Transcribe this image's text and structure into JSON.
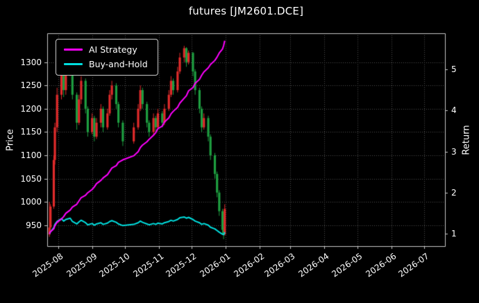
{
  "colors": {
    "background": "#000000",
    "text": "#ffffff",
    "grid": "#4f4f4f",
    "spine": "#c8c8c8",
    "candle_up": "#e12b2b",
    "candle_down": "#1e9e40",
    "ai_strategy": "#ff00ff",
    "buy_and_hold": "#00dede"
  },
  "chart_data": {
    "type": "candlestick+line",
    "title": "futures [JM2601.DCE]",
    "price_ylabel": "Price",
    "return_ylabel": "Return",
    "grid": true,
    "legend_position": "upper left",
    "x_lim": [
      "2025-07-22",
      "2026-07-20"
    ],
    "x_ticks": [
      "2025-08",
      "2025-09",
      "2025-10",
      "2025-11",
      "2025-12",
      "2026-01",
      "2026-02",
      "2026-03",
      "2026-04",
      "2026-05",
      "2026-06",
      "2026-07"
    ],
    "price_ylim": [
      905,
      1362
    ],
    "price_ticks": [
      950,
      1000,
      1050,
      1100,
      1150,
      1200,
      1250,
      1300
    ],
    "return_ylim": [
      0.7,
      5.88
    ],
    "return_ticks": [
      1,
      2,
      3,
      4,
      5
    ],
    "candles": {
      "dates": [
        "2025-07-24",
        "2025-07-25",
        "2025-07-28",
        "2025-07-29",
        "2025-07-31",
        "2025-08-04",
        "2025-08-06",
        "2025-08-08",
        "2025-08-12",
        "2025-08-14",
        "2025-08-18",
        "2025-08-20",
        "2025-08-22",
        "2025-08-26",
        "2025-08-28",
        "2025-09-01",
        "2025-09-03",
        "2025-09-05",
        "2025-09-09",
        "2025-09-11",
        "2025-09-15",
        "2025-09-17",
        "2025-09-19",
        "2025-09-23",
        "2025-09-25",
        "2025-09-29",
        "2025-10-09",
        "2025-10-13",
        "2025-10-15",
        "2025-10-17",
        "2025-10-21",
        "2025-10-23",
        "2025-10-27",
        "2025-10-29",
        "2025-10-31",
        "2025-11-04",
        "2025-11-06",
        "2025-11-10",
        "2025-11-12",
        "2025-11-14",
        "2025-11-18",
        "2025-11-20",
        "2025-11-24",
        "2025-11-26",
        "2025-11-28",
        "2025-12-02",
        "2025-12-04",
        "2025-12-08",
        "2025-12-10",
        "2025-12-12",
        "2025-12-16",
        "2025-12-18",
        "2025-12-22",
        "2025-12-24",
        "2025-12-26",
        "2025-12-29",
        "2025-12-30",
        "2025-12-31"
      ],
      "open": [
        930,
        945,
        990,
        1090,
        1160,
        1230,
        1290,
        1240,
        1280,
        1300,
        1230,
        1170,
        1220,
        1260,
        1200,
        1150,
        1180,
        1140,
        1170,
        1200,
        1160,
        1190,
        1230,
        1250,
        1210,
        1170,
        1130,
        1160,
        1200,
        1240,
        1210,
        1170,
        1150,
        1180,
        1160,
        1190,
        1170,
        1200,
        1230,
        1260,
        1240,
        1280,
        1310,
        1330,
        1300,
        1320,
        1280,
        1240,
        1200,
        1160,
        1180,
        1140,
        1100,
        1060,
        1020,
        980,
        940,
        930
      ],
      "high": [
        1000,
        995,
        1100,
        1170,
        1245,
        1310,
        1295,
        1290,
        1320,
        1305,
        1235,
        1230,
        1270,
        1265,
        1205,
        1190,
        1185,
        1180,
        1210,
        1205,
        1200,
        1240,
        1260,
        1255,
        1215,
        1175,
        1170,
        1210,
        1250,
        1245,
        1215,
        1175,
        1190,
        1185,
        1200,
        1195,
        1210,
        1240,
        1270,
        1265,
        1290,
        1320,
        1335,
        1332,
        1325,
        1322,
        1285,
        1245,
        1205,
        1190,
        1185,
        1145,
        1105,
        1065,
        1025,
        985,
        945,
        995
      ],
      "low": [
        925,
        940,
        985,
        1080,
        1150,
        1220,
        1225,
        1230,
        1270,
        1220,
        1155,
        1165,
        1210,
        1190,
        1140,
        1145,
        1130,
        1135,
        1160,
        1150,
        1155,
        1185,
        1220,
        1200,
        1160,
        1120,
        1125,
        1155,
        1195,
        1200,
        1160,
        1140,
        1145,
        1150,
        1155,
        1160,
        1165,
        1195,
        1225,
        1230,
        1235,
        1275,
        1300,
        1290,
        1295,
        1270,
        1230,
        1190,
        1150,
        1155,
        1130,
        1090,
        1050,
        1010,
        970,
        930,
        920,
        928
      ],
      "close": [
        945,
        990,
        1090,
        1160,
        1230,
        1290,
        1240,
        1280,
        1300,
        1230,
        1170,
        1220,
        1260,
        1200,
        1150,
        1180,
        1140,
        1170,
        1200,
        1160,
        1190,
        1230,
        1250,
        1210,
        1170,
        1130,
        1160,
        1200,
        1240,
        1210,
        1170,
        1150,
        1180,
        1160,
        1190,
        1170,
        1200,
        1230,
        1260,
        1240,
        1280,
        1310,
        1330,
        1300,
        1320,
        1280,
        1240,
        1200,
        1160,
        1180,
        1140,
        1100,
        1060,
        1020,
        980,
        940,
        930,
        985
      ]
    },
    "series": [
      {
        "name": "AI Strategy",
        "color": "#ff00ff",
        "axis": "return",
        "values": [
          1.0,
          1.05,
          1.12,
          1.2,
          1.28,
          1.36,
          1.42,
          1.5,
          1.58,
          1.65,
          1.72,
          1.8,
          1.88,
          1.94,
          2.0,
          2.08,
          2.14,
          2.22,
          2.3,
          2.36,
          2.44,
          2.52,
          2.6,
          2.66,
          2.74,
          2.8,
          2.9,
          3.0,
          3.1,
          3.16,
          3.24,
          3.3,
          3.4,
          3.46,
          3.56,
          3.62,
          3.72,
          3.82,
          3.92,
          3.98,
          4.08,
          4.18,
          4.3,
          4.36,
          4.48,
          4.56,
          4.66,
          4.76,
          4.86,
          4.94,
          5.04,
          5.12,
          5.22,
          5.3,
          5.4,
          5.5,
          5.58,
          5.7
        ]
      },
      {
        "name": "Buy-and-Hold",
        "color": "#00dede",
        "axis": "return",
        "values": [
          1.0,
          1.05,
          1.15,
          1.23,
          1.3,
          1.37,
          1.31,
          1.35,
          1.38,
          1.3,
          1.24,
          1.29,
          1.33,
          1.27,
          1.22,
          1.25,
          1.21,
          1.24,
          1.27,
          1.23,
          1.26,
          1.3,
          1.32,
          1.28,
          1.24,
          1.2,
          1.23,
          1.27,
          1.31,
          1.28,
          1.24,
          1.22,
          1.25,
          1.23,
          1.26,
          1.24,
          1.27,
          1.3,
          1.33,
          1.31,
          1.35,
          1.39,
          1.41,
          1.38,
          1.4,
          1.35,
          1.31,
          1.27,
          1.23,
          1.25,
          1.21,
          1.16,
          1.12,
          1.08,
          1.04,
          0.99,
          0.98,
          1.04
        ]
      }
    ]
  }
}
